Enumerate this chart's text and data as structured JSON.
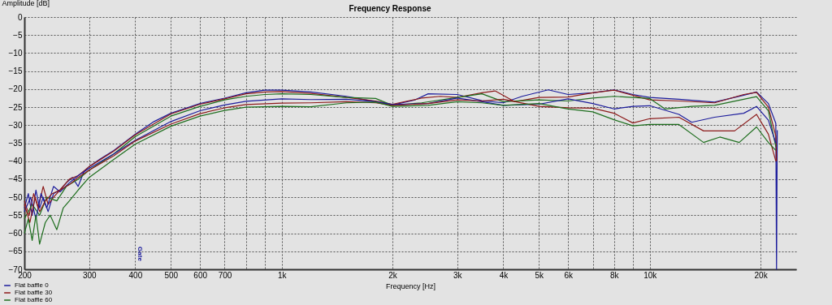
{
  "chart_data": {
    "type": "line",
    "title": "Frequency Response",
    "xlabel": "Frequency [Hz]",
    "ylabel": "Amplitude [dB]",
    "log": "x",
    "grid": true,
    "legend": "bottom left",
    "line_style": "solid",
    "xlim": [
      200,
      25000
    ],
    "ylim": [
      -70,
      0
    ],
    "xticks": [
      200,
      300,
      400,
      500,
      600,
      700,
      {
        "value": 800,
        "label": null
      },
      {
        "value": 900,
        "label": null
      },
      {
        "value": 1000,
        "label": "1k"
      },
      {
        "value": 2000,
        "label": "2k"
      },
      {
        "value": 3000,
        "label": "3k"
      },
      {
        "value": 4000,
        "label": "4k"
      },
      {
        "value": 5000,
        "label": "5k"
      },
      {
        "value": 6000,
        "label": "6k"
      },
      {
        "value": 7000,
        "label": null
      },
      {
        "value": 8000,
        "label": "8k"
      },
      {
        "value": 9000,
        "label": null
      },
      {
        "value": 10000,
        "label": "10k"
      },
      {
        "value": 20000,
        "label": "20k"
      }
    ],
    "yticks": [
      -70,
      -65,
      -60,
      -55,
      -50,
      -45,
      -40,
      -35,
      -30,
      -25,
      -20,
      -15,
      -10,
      -5,
      0
    ],
    "annotations": [
      "Gate"
    ],
    "series": [
      {
        "name": "Flat baffle 0",
        "color": "#1c1c9c",
        "x": [
          200,
          205,
          210,
          215,
          220,
          225,
          232,
          240,
          250,
          260,
          270,
          280,
          290,
          300,
          320,
          350,
          400,
          450,
          500,
          600,
          700,
          800,
          900,
          1000,
          1200,
          1500,
          1800,
          2000,
          2300,
          2500,
          3000,
          3500,
          4000,
          4500,
          5300,
          6000,
          7000,
          8000,
          9000,
          10000,
          12000,
          15000,
          18000,
          19500,
          21000,
          22000,
          22100,
          22200
        ],
        "values": [
          -53,
          -49,
          -55,
          -48,
          -53,
          -50,
          -54,
          -49,
          -48,
          -46,
          -44.5,
          -47,
          -43,
          -41.5,
          -39.5,
          -37,
          -32.5,
          -29,
          -26.7,
          -24,
          -22.5,
          -21,
          -20.3,
          -20.3,
          -20.8,
          -22,
          -23.5,
          -24.4,
          -23,
          -21.3,
          -21.5,
          -23.2,
          -23.8,
          -22,
          -20.2,
          -21.5,
          -21,
          -20.2,
          -21.5,
          -22.3,
          -22.8,
          -23.6,
          -21.7,
          -20.8,
          -24,
          -29.5,
          -70,
          -31.4
        ]
      },
      {
        "name": "Flat baffle 30",
        "color": "#8c1a1a",
        "x": [
          200,
          206,
          212,
          218,
          225,
          232,
          240,
          250,
          265,
          280,
          300,
          350,
          400,
          500,
          600,
          700,
          800,
          900,
          1000,
          1200,
          1500,
          1800,
          2000,
          2400,
          2700,
          3000,
          3500,
          3800,
          4300,
          5000,
          6000,
          7000,
          8000,
          10000,
          12000,
          15000,
          18000,
          19500,
          21000,
          22000,
          22100
        ],
        "values": [
          -51,
          -55,
          -49,
          -53,
          -47,
          -52,
          -50,
          -48,
          -45,
          -44,
          -41.5,
          -37.2,
          -32.7,
          -26.9,
          -24.2,
          -22.7,
          -21.3,
          -20.8,
          -20.7,
          -21.2,
          -22.3,
          -23.3,
          -24.2,
          -22.5,
          -22,
          -22.3,
          -21,
          -20.5,
          -23.5,
          -22.3,
          -22.2,
          -21,
          -20.3,
          -23,
          -23.3,
          -23.8,
          -21.5,
          -20.9,
          -25,
          -33,
          -40
        ]
      },
      {
        "name": "Flat baffle 60",
        "color": "#1e6e1e",
        "x": [
          200,
          210,
          220,
          230,
          245,
          260,
          280,
          300,
          350,
          400,
          500,
          600,
          700,
          800,
          900,
          1000,
          1200,
          1500,
          1800,
          2000,
          2400,
          3000,
          3500,
          4000,
          5000,
          6000,
          7000,
          8000,
          10000,
          11000,
          13000,
          15000,
          18000,
          19500,
          21000,
          22000
        ],
        "values": [
          -56,
          -52,
          -55,
          -50,
          -51,
          -47,
          -45,
          -42.5,
          -38,
          -33.2,
          -27.5,
          -24.8,
          -23,
          -22,
          -21.5,
          -21.3,
          -21.5,
          -22.3,
          -22.6,
          -24.5,
          -23.8,
          -22.3,
          -21.3,
          -23.5,
          -23,
          -23.3,
          -22.5,
          -22,
          -22.6,
          -25.5,
          -24.8,
          -24.5,
          -22.8,
          -22.1,
          -26,
          -36
        ]
      },
      {
        "color": "#1c1c9c",
        "x": [
          200,
          208,
          215,
          222,
          230,
          240,
          250,
          265,
          280,
          300,
          350,
          400,
          500,
          600,
          700,
          800,
          1000,
          1200,
          1500,
          1800,
          2000,
          2500,
          3000,
          3500,
          4000,
          5000,
          6000,
          7000,
          8000,
          9000,
          10000,
          12000,
          13000,
          15000,
          18000,
          19500,
          21000,
          22000
        ],
        "values": [
          -54,
          -50,
          -56,
          -49,
          -53,
          -47,
          -48.5,
          -46,
          -44,
          -42,
          -38,
          -34.2,
          -29,
          -26,
          -24.4,
          -23.4,
          -22.7,
          -22.9,
          -22.8,
          -23.5,
          -24.3,
          -24,
          -22.5,
          -23.5,
          -24.5,
          -24.2,
          -22.7,
          -24,
          -25.5,
          -24.8,
          -24.6,
          -27,
          -29.2,
          -27.8,
          -26.7,
          -24.8,
          -28.6,
          -35
        ]
      },
      {
        "color": "#8c1a1a",
        "x": [
          200,
          207,
          214,
          220,
          228,
          238,
          250,
          265,
          280,
          300,
          350,
          400,
          500,
          600,
          700,
          800,
          1000,
          1200,
          1500,
          1800,
          2000,
          2500,
          3000,
          3500,
          4000,
          5000,
          6000,
          7000,
          8000,
          9000,
          10000,
          12000,
          14000,
          17000,
          19500,
          21000,
          22000
        ],
        "values": [
          -52,
          -57,
          -50,
          -54,
          -51,
          -49,
          -48,
          -46.5,
          -44.5,
          -42.5,
          -38.5,
          -34.4,
          -29.7,
          -26.8,
          -25.2,
          -24.3,
          -23.9,
          -23.8,
          -23.5,
          -23.8,
          -24.5,
          -24,
          -23,
          -23.3,
          -22.8,
          -24.8,
          -25.2,
          -25.3,
          -26.7,
          -29.4,
          -28.2,
          -27.8,
          -31.6,
          -31.6,
          -27,
          -32.5,
          -40
        ]
      },
      {
        "color": "#1e6e1e",
        "x": [
          200,
          205,
          210,
          215,
          220,
          228,
          235,
          245,
          255,
          265,
          280,
          300,
          350,
          400,
          500,
          600,
          700,
          800,
          1000,
          1200,
          1500,
          1800,
          2000,
          2500,
          3000,
          3500,
          4000,
          5000,
          6000,
          7000,
          8000,
          9000,
          10000,
          12000,
          14000,
          15500,
          17500,
          19500,
          21000,
          22000
        ],
        "values": [
          -60,
          -56,
          -62,
          -55,
          -63,
          -57,
          -55,
          -59,
          -53,
          -51,
          -48,
          -44.5,
          -39.5,
          -35.3,
          -30.3,
          -27.5,
          -25.9,
          -25,
          -24.8,
          -24.9,
          -23.8,
          -23.6,
          -24.8,
          -24.5,
          -23.5,
          -23.8,
          -24.5,
          -24,
          -25.5,
          -26.3,
          -28.5,
          -30.2,
          -29.8,
          -29.8,
          -34.8,
          -33.3,
          -34.8,
          -30.5,
          -34.8,
          -37
        ]
      }
    ]
  }
}
